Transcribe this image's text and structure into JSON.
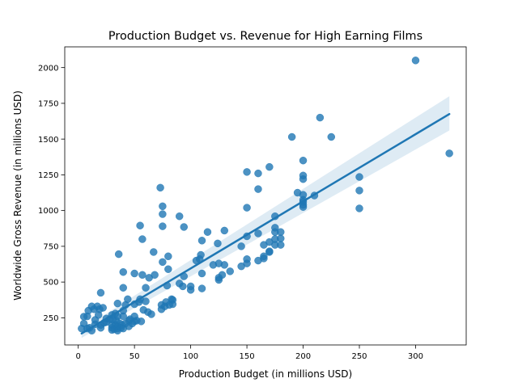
{
  "chart_data": {
    "type": "scatter",
    "title": "Production Budget vs. Revenue for High Earning Films",
    "xlabel": "Production Budget (in millions USD)",
    "ylabel": "Worldwide Gross Revenue (in millions USD)",
    "xlim": [
      -12,
      345
    ],
    "ylim": [
      60,
      2145
    ],
    "xticks": [
      0,
      50,
      100,
      150,
      200,
      250,
      300
    ],
    "yticks": [
      250,
      500,
      750,
      1000,
      1250,
      1500,
      1750,
      2000
    ],
    "grid": false,
    "legend": "none",
    "colors": {
      "points": "#1f77b4",
      "fit_line": "#1f77b4",
      "confidence_band": "#1f77b4"
    },
    "regression": {
      "x_range": [
        3,
        330
      ],
      "start": 140,
      "end": 1675,
      "ci_lower": [
        110,
        1560
      ],
      "ci_upper": [
        170,
        1800
      ]
    },
    "points": [
      [
        3,
        175
      ],
      [
        5,
        210
      ],
      [
        5,
        258
      ],
      [
        8,
        260
      ],
      [
        8,
        175
      ],
      [
        9,
        300
      ],
      [
        10,
        180
      ],
      [
        12,
        330
      ],
      [
        12,
        160
      ],
      [
        14,
        310
      ],
      [
        15,
        235
      ],
      [
        15,
        205
      ],
      [
        17,
        330
      ],
      [
        18,
        270
      ],
      [
        19,
        310
      ],
      [
        20,
        425
      ],
      [
        20,
        200
      ],
      [
        20,
        180
      ],
      [
        22,
        320
      ],
      [
        23,
        215
      ],
      [
        25,
        220
      ],
      [
        25,
        245
      ],
      [
        28,
        240
      ],
      [
        30,
        270
      ],
      [
        30,
        200
      ],
      [
        30,
        165
      ],
      [
        30,
        180
      ],
      [
        31,
        235
      ],
      [
        32,
        170
      ],
      [
        33,
        280
      ],
      [
        33,
        200
      ],
      [
        34,
        230
      ],
      [
        35,
        190
      ],
      [
        35,
        175
      ],
      [
        35,
        160
      ],
      [
        35,
        350
      ],
      [
        35,
        260
      ],
      [
        36,
        695
      ],
      [
        37,
        210
      ],
      [
        38,
        180
      ],
      [
        39,
        200
      ],
      [
        40,
        460
      ],
      [
        40,
        570
      ],
      [
        40,
        300
      ],
      [
        40,
        175
      ],
      [
        40,
        260
      ],
      [
        42,
        340
      ],
      [
        42,
        210
      ],
      [
        44,
        380
      ],
      [
        45,
        230
      ],
      [
        45,
        190
      ],
      [
        46,
        240
      ],
      [
        48,
        210
      ],
      [
        50,
        345
      ],
      [
        50,
        560
      ],
      [
        50,
        260
      ],
      [
        50,
        225
      ],
      [
        52,
        230
      ],
      [
        54,
        360
      ],
      [
        55,
        895
      ],
      [
        55,
        380
      ],
      [
        56,
        225
      ],
      [
        57,
        800
      ],
      [
        57,
        550
      ],
      [
        58,
        305
      ],
      [
        60,
        460
      ],
      [
        60,
        365
      ],
      [
        62,
        290
      ],
      [
        63,
        530
      ],
      [
        65,
        275
      ],
      [
        67,
        710
      ],
      [
        68,
        550
      ],
      [
        73,
        1160
      ],
      [
        74,
        340
      ],
      [
        74,
        310
      ],
      [
        75,
        1030
      ],
      [
        75,
        975
      ],
      [
        75,
        890
      ],
      [
        75,
        640
      ],
      [
        77,
        330
      ],
      [
        78,
        360
      ],
      [
        79,
        475
      ],
      [
        80,
        590
      ],
      [
        80,
        680
      ],
      [
        81,
        340
      ],
      [
        83,
        380
      ],
      [
        84,
        375
      ],
      [
        84,
        345
      ],
      [
        90,
        960
      ],
      [
        90,
        490
      ],
      [
        93,
        470
      ],
      [
        94,
        885
      ],
      [
        94,
        540
      ],
      [
        100,
        445
      ],
      [
        100,
        470
      ],
      [
        105,
        650
      ],
      [
        108,
        660
      ],
      [
        109,
        690
      ],
      [
        110,
        560
      ],
      [
        110,
        790
      ],
      [
        110,
        455
      ],
      [
        115,
        850
      ],
      [
        120,
        620
      ],
      [
        124,
        770
      ],
      [
        125,
        630
      ],
      [
        125,
        530
      ],
      [
        125,
        515
      ],
      [
        128,
        550
      ],
      [
        130,
        860
      ],
      [
        130,
        620
      ],
      [
        135,
        575
      ],
      [
        145,
        750
      ],
      [
        145,
        610
      ],
      [
        150,
        1270
      ],
      [
        150,
        1020
      ],
      [
        150,
        820
      ],
      [
        150,
        660
      ],
      [
        150,
        630
      ],
      [
        160,
        1260
      ],
      [
        160,
        1150
      ],
      [
        160,
        840
      ],
      [
        160,
        650
      ],
      [
        165,
        760
      ],
      [
        165,
        680
      ],
      [
        165,
        665
      ],
      [
        170,
        1305
      ],
      [
        170,
        780
      ],
      [
        170,
        715
      ],
      [
        170,
        710
      ],
      [
        175,
        960
      ],
      [
        175,
        880
      ],
      [
        175,
        850
      ],
      [
        175,
        800
      ],
      [
        175,
        760
      ],
      [
        180,
        850
      ],
      [
        180,
        805
      ],
      [
        180,
        760
      ],
      [
        190,
        1515
      ],
      [
        195,
        1125
      ],
      [
        200,
        1350
      ],
      [
        200,
        1245
      ],
      [
        200,
        1220
      ],
      [
        200,
        1110
      ],
      [
        200,
        1075
      ],
      [
        200,
        1060
      ],
      [
        200,
        1040
      ],
      [
        200,
        1025
      ],
      [
        210,
        1105
      ],
      [
        215,
        1650
      ],
      [
        225,
        1515
      ],
      [
        250,
        1235
      ],
      [
        250,
        1140
      ],
      [
        250,
        1015
      ],
      [
        300,
        2050
      ],
      [
        330,
        1400
      ]
    ]
  }
}
